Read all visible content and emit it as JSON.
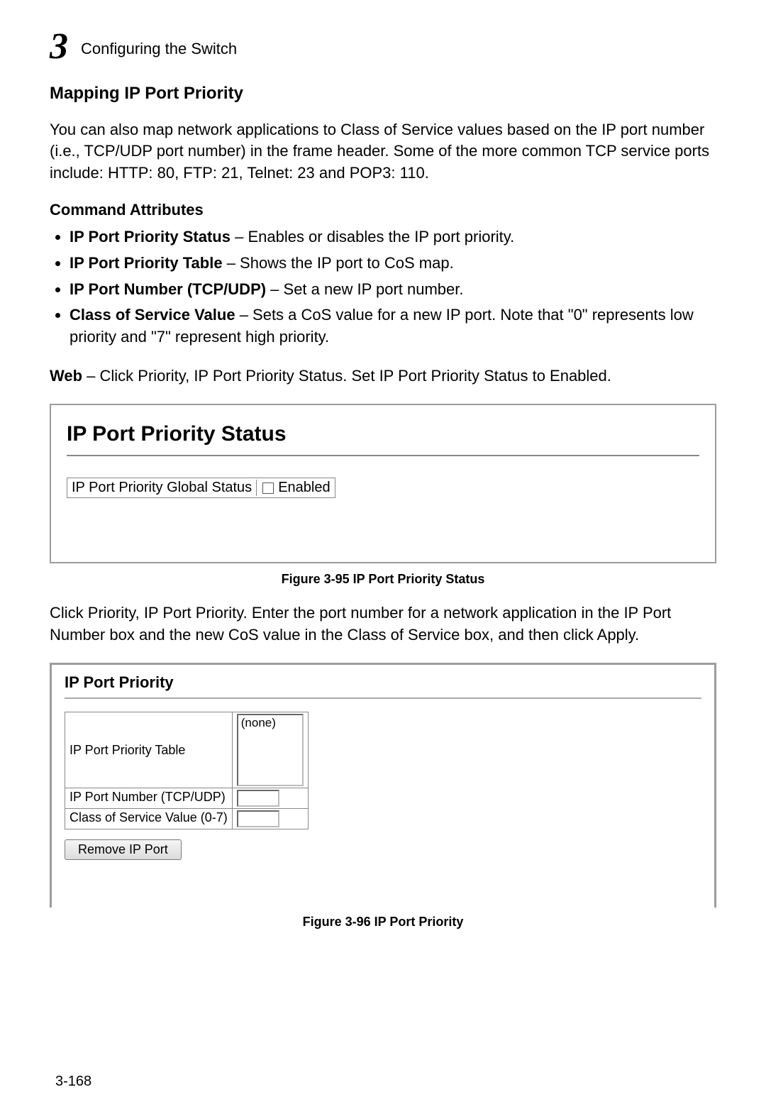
{
  "header": {
    "chapter_number": "3",
    "running_title": "Configuring the Switch"
  },
  "section_title": "Mapping IP Port Priority",
  "intro_para": "You can also map network applications to Class of Service values based on the IP port number (i.e., TCP/UDP port number) in the frame header. Some of the more common TCP service ports include: HTTP: 80, FTP: 21, Telnet: 23 and POP3: 110.",
  "cmd_attr_heading": "Command Attributes",
  "attributes": [
    {
      "lead": "IP Port Priority Status",
      "rest": " – Enables or disables the IP port priority."
    },
    {
      "lead": "IP Port Priority Table",
      "rest": " – Shows the IP port to CoS map."
    },
    {
      "lead": "IP Port Number (TCP/UDP)",
      "rest": " – Set a new IP port number."
    },
    {
      "lead": "Class of Service Value",
      "rest": " – Sets a CoS value for a new IP port. Note that \"0\" represents low priority and \"7\" represent high priority."
    }
  ],
  "web_lead": "Web",
  "web_rest": " – Click Priority, IP Port Priority Status. Set IP Port Priority Status to Enabled.",
  "fig1": {
    "panel_title": "IP Port Priority Status",
    "row_label": "IP Port Priority Global Status",
    "checkbox_label": "Enabled",
    "caption": "Figure 3-95  IP Port Priority Status"
  },
  "mid_para": "Click Priority, IP Port Priority. Enter the port number for a network application in the IP Port Number box and the new CoS value in the Class of Service box, and then click Apply.",
  "fig2": {
    "panel_title": "IP Port Priority",
    "rows": {
      "table_label": "IP Port Priority Table",
      "list_value": "(none)",
      "portnum_label": "IP Port Number (TCP/UDP)",
      "cos_label": "Class of Service Value (0-7)"
    },
    "button_label": "Remove IP Port",
    "caption": "Figure 3-96  IP Port Priority"
  },
  "page_number": "3-168"
}
